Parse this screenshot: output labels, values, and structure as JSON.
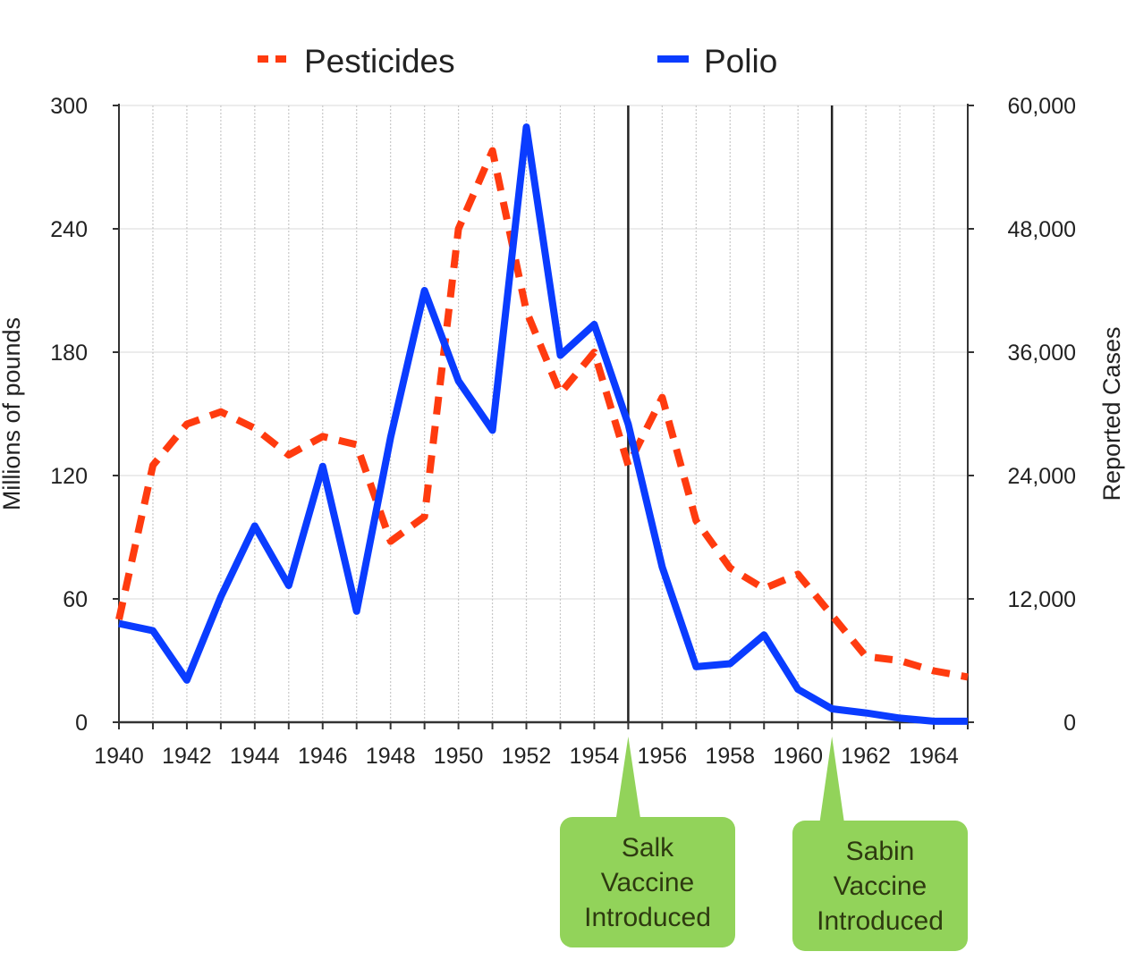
{
  "chart_data": {
    "type": "line",
    "x": [
      1940,
      1941,
      1942,
      1943,
      1944,
      1945,
      1946,
      1947,
      1948,
      1949,
      1950,
      1951,
      1952,
      1953,
      1954,
      1955,
      1956,
      1957,
      1958,
      1959,
      1960,
      1961,
      1962,
      1963,
      1964,
      1965
    ],
    "x_tick_labels": [
      "1940",
      "1942",
      "1944",
      "1946",
      "1948",
      "1950",
      "1952",
      "1954",
      "1956",
      "1958",
      "1960",
      "1962",
      "1964"
    ],
    "series": [
      {
        "name": "Pesticides",
        "axis": "left",
        "style": "dashed",
        "color": "#ff3b0f",
        "values": [
          50,
          125,
          145,
          151,
          143,
          130,
          139,
          135,
          88,
          100,
          240,
          278,
          200,
          160,
          180,
          125,
          158,
          98,
          75,
          65,
          72,
          52,
          32,
          30,
          25,
          22
        ]
      },
      {
        "name": "Polio",
        "axis": "right",
        "style": "solid",
        "color": "#0a3cff",
        "values": [
          9600,
          8900,
          4100,
          12200,
          19100,
          13300,
          24900,
          10800,
          27700,
          42000,
          33200,
          28400,
          57900,
          35700,
          38700,
          29000,
          15100,
          5400,
          5700,
          8500,
          3200,
          1300,
          900,
          400,
          100,
          100
        ]
      }
    ],
    "left_axis": {
      "label": "Millions of pounds",
      "min": 0,
      "max": 300,
      "ticks": [
        "0",
        "60",
        "120",
        "180",
        "240",
        "300"
      ],
      "tick_values": [
        0,
        60,
        120,
        180,
        240,
        300
      ]
    },
    "right_axis": {
      "label": "Reported Cases",
      "min": 0,
      "max": 60000,
      "ticks": [
        "0",
        "12,000",
        "24,000",
        "36,000",
        "48,000",
        "60,000"
      ],
      "tick_values": [
        0,
        12000,
        24000,
        36000,
        48000,
        60000
      ]
    },
    "grid": true,
    "legend_position": "top",
    "annotations": [
      {
        "year": 1955,
        "text": [
          "Salk",
          "Vaccine",
          "Introduced"
        ]
      },
      {
        "year": 1961,
        "text": [
          "Sabin",
          "Vaccine",
          "Introduced"
        ]
      }
    ]
  }
}
